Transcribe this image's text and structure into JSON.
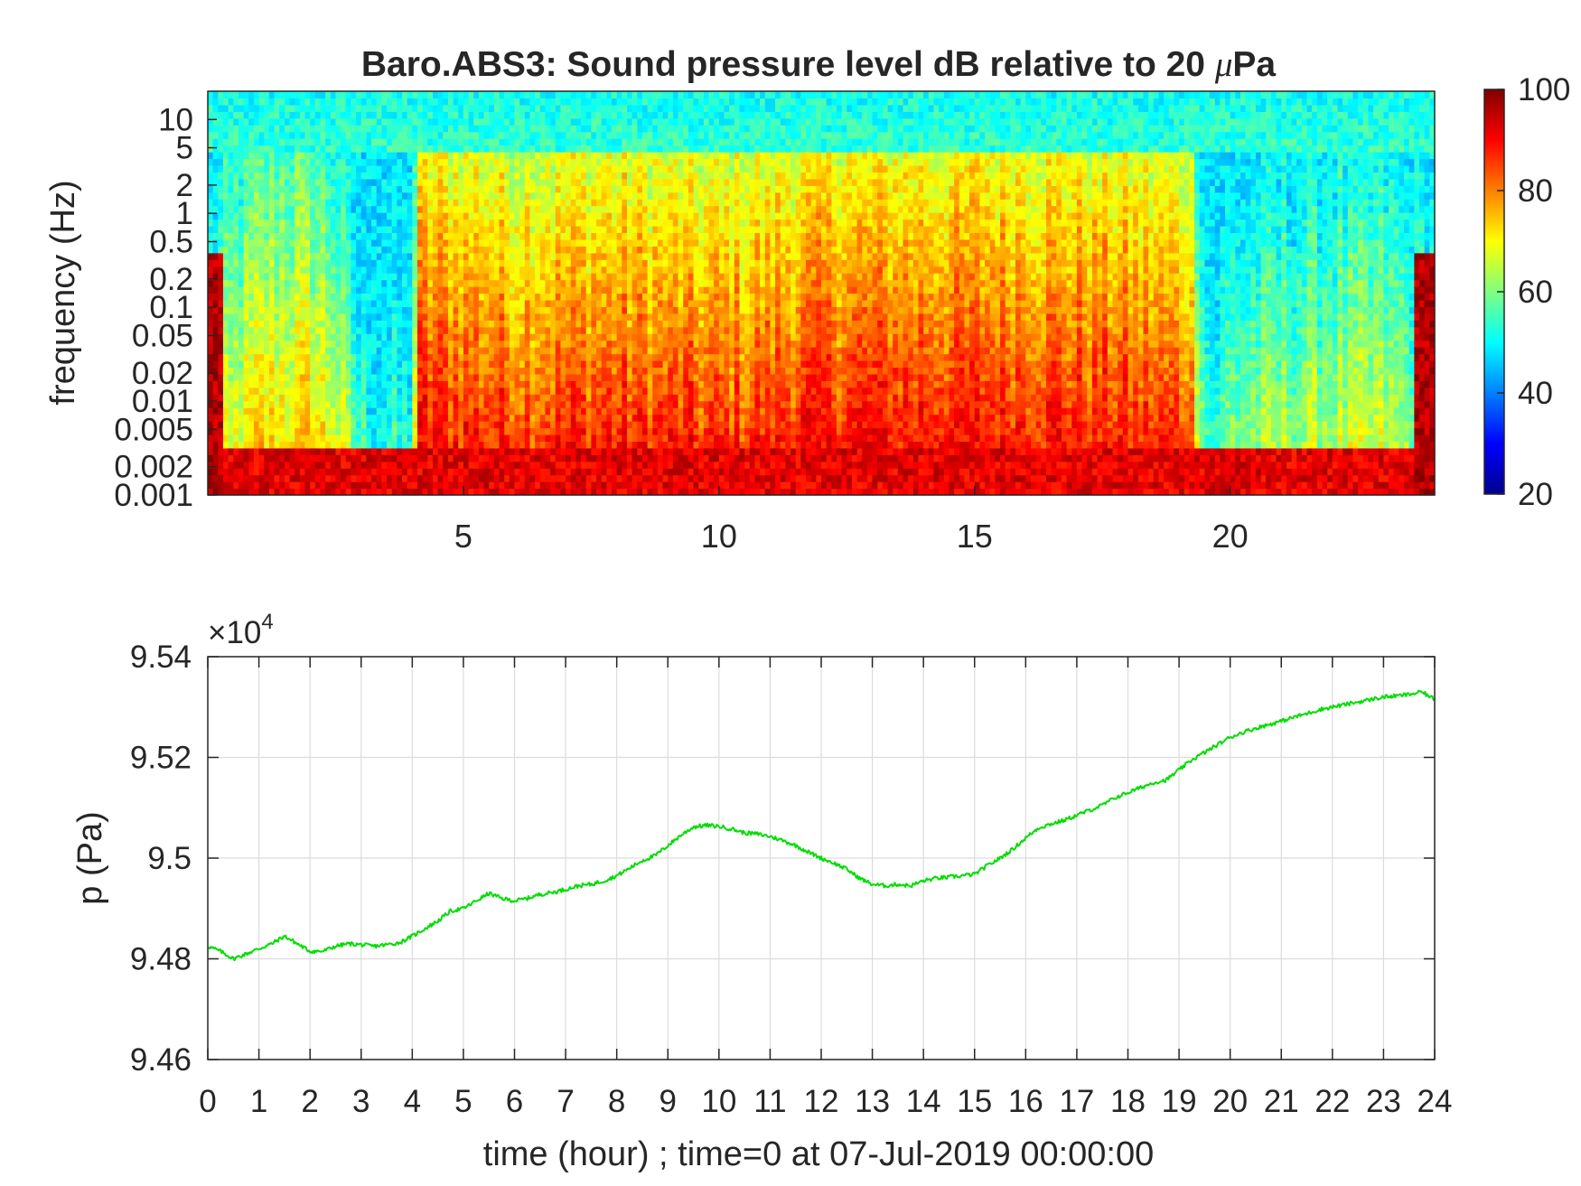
{
  "chart_data": [
    {
      "type": "heatmap",
      "title": "Baro.ABS3: Sound pressure level dB relative to 20 μPa",
      "title_prefix": "Baro.ABS3: Sound pressure level dB relative to 20 ",
      "title_mu": "μ",
      "title_suffix": "Pa",
      "ylabel": "frequency (Hz)",
      "xlabel": "",
      "xlim": [
        0,
        24
      ],
      "xticks": [
        5,
        10,
        15,
        20
      ],
      "xtick_labels": [
        "5",
        "10",
        "15",
        "20"
      ],
      "yscale": "log",
      "ylim": [
        0.001,
        20
      ],
      "yticks": [
        0.001,
        0.002,
        0.005,
        0.01,
        0.02,
        0.05,
        0.1,
        0.2,
        0.5,
        1,
        2,
        5,
        10
      ],
      "ytick_labels": [
        "0.001",
        "0.002",
        "0.005",
        "0.01",
        "0.02",
        "0.05",
        "0.1",
        "0.2",
        "0.5",
        "1",
        "2",
        "5",
        "10"
      ],
      "colormap": "jet",
      "colorbar": {
        "range": [
          20,
          100
        ],
        "ticks": [
          20,
          40,
          60,
          80,
          100
        ],
        "tick_labels": [
          "20",
          "40",
          "60",
          "80",
          "100"
        ]
      },
      "activity_profile": {
        "x": [
          0,
          1,
          2,
          2.5,
          3,
          3.5,
          4,
          4.1,
          6,
          8,
          10,
          12,
          14,
          16,
          18,
          19.2,
          19.6,
          20,
          21,
          22,
          23,
          24
        ],
        "level": [
          0.3,
          0.6,
          0.62,
          0.5,
          0.15,
          0.1,
          0.1,
          1.0,
          0.92,
          0.95,
          0.9,
          1.0,
          1.0,
          1.0,
          0.95,
          0.9,
          0.1,
          0.3,
          0.35,
          0.4,
          0.4,
          0.3
        ]
      }
    },
    {
      "type": "line",
      "xlabel": "time (hour) ; time=0 at 07-Jul-2019 00:00:00",
      "ylabel": "p (Pa)",
      "exponent_base": "×10",
      "exponent_power": "4",
      "xlim": [
        0,
        24
      ],
      "ylim": [
        94600,
        95400
      ],
      "grid": true,
      "xticks": [
        0,
        1,
        2,
        3,
        4,
        5,
        6,
        7,
        8,
        9,
        10,
        11,
        12,
        13,
        14,
        15,
        16,
        17,
        18,
        19,
        20,
        21,
        22,
        23,
        24
      ],
      "xtick_labels": [
        "0",
        "1",
        "2",
        "3",
        "4",
        "5",
        "6",
        "7",
        "8",
        "9",
        "10",
        "11",
        "12",
        "13",
        "14",
        "15",
        "16",
        "17",
        "18",
        "19",
        "20",
        "21",
        "22",
        "23",
        "24"
      ],
      "yticks": [
        94600,
        94800,
        95000,
        95200,
        95400
      ],
      "ytick_labels": [
        "9.46",
        "9.48",
        "9.5",
        "9.52",
        "9.54"
      ],
      "line_color": "#00dd00",
      "series": [
        {
          "x": [
            0,
            0.25,
            0.5,
            0.75,
            1.0,
            1.25,
            1.5,
            1.75,
            2.0,
            2.25,
            2.5,
            2.75,
            3.0,
            3.25,
            3.5,
            3.75,
            4.0,
            4.25,
            4.5,
            4.75,
            5.0,
            5.25,
            5.5,
            5.75,
            6.0,
            6.25,
            6.5,
            6.75,
            7.0,
            7.25,
            7.5,
            7.75,
            8.0,
            8.25,
            8.5,
            8.75,
            9.0,
            9.25,
            9.5,
            9.75,
            10.0,
            10.25,
            10.5,
            10.75,
            11.0,
            11.25,
            11.5,
            11.75,
            12.0,
            12.25,
            12.5,
            12.75,
            13.0,
            13.25,
            13.5,
            13.75,
            14.0,
            14.25,
            14.5,
            14.75,
            15.0,
            15.25,
            15.5,
            15.75,
            16.0,
            16.25,
            16.5,
            16.75,
            17.0,
            17.25,
            17.5,
            17.75,
            18.0,
            18.25,
            18.5,
            18.75,
            19.0,
            19.25,
            19.5,
            19.75,
            20.0,
            20.25,
            20.5,
            20.75,
            21.0,
            21.25,
            21.5,
            21.75,
            22.0,
            22.25,
            22.5,
            22.75,
            23.0,
            23.25,
            23.5,
            23.75,
            24.0
          ],
          "values": [
            94825,
            94815,
            94800,
            94810,
            94820,
            94830,
            94845,
            94830,
            94815,
            94815,
            94825,
            94830,
            94828,
            94825,
            94828,
            94832,
            94845,
            94860,
            94875,
            94895,
            94900,
            94915,
            94930,
            94920,
            94915,
            94920,
            94928,
            94932,
            94938,
            94945,
            94948,
            94955,
            94965,
            94980,
            94995,
            95005,
            95025,
            95045,
            95062,
            95065,
            95063,
            95058,
            95050,
            95048,
            95043,
            95035,
            95025,
            95012,
            95000,
            94990,
            94978,
            94960,
            94948,
            94945,
            94948,
            94945,
            94955,
            94960,
            94962,
            94965,
            94968,
            94985,
            95000,
            95018,
            95040,
            95060,
            95068,
            95075,
            95085,
            95095,
            95105,
            95120,
            95130,
            95140,
            95150,
            95155,
            95175,
            95195,
            95210,
            95225,
            95240,
            95250,
            95258,
            95265,
            95272,
            95280,
            95287,
            95295,
            95300,
            95305,
            95310,
            95315,
            95320,
            95322,
            95325,
            95330,
            95315
          ]
        }
      ]
    }
  ]
}
